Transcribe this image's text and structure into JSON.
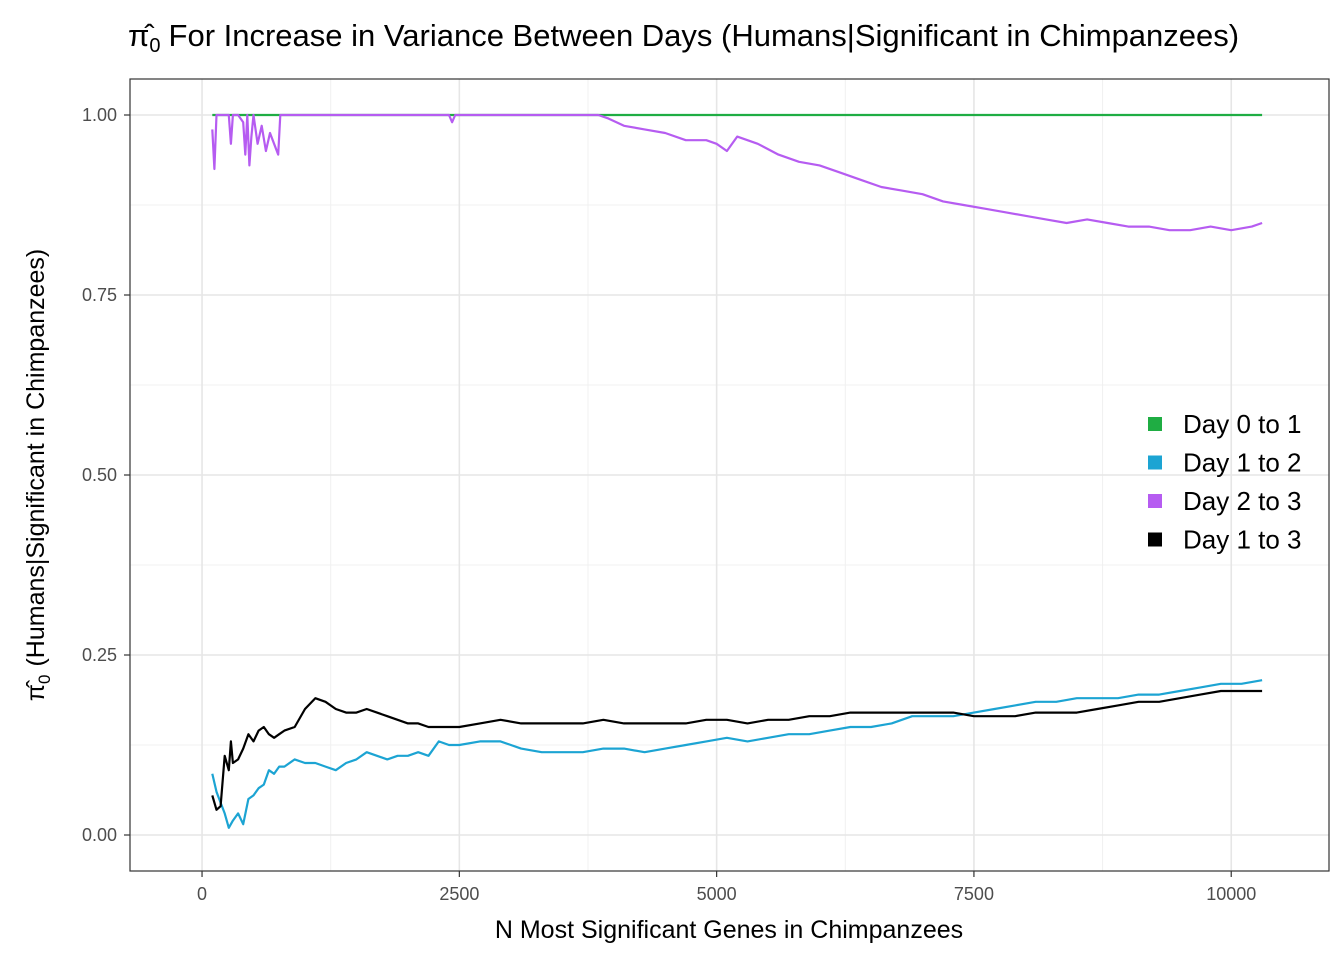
{
  "chart_data": {
    "type": "line",
    "title_prefix": "π̂",
    "title_subscript": "0",
    "title_text": "For Increase in Variance Between Days (Humans|Significant in Chimpanzees)",
    "xlabel": "N Most Significant Genes in Chimpanzees",
    "ylabel_prefix": "π̂",
    "ylabel_subscript": "0",
    "ylabel_text": "(Humans|Significant in Chimpanzees)",
    "xlim": [
      -700,
      10950
    ],
    "ylim": [
      -0.05,
      1.05
    ],
    "x_ticks": [
      0,
      2500,
      5000,
      7500,
      10000
    ],
    "x_tick_labels": [
      "0",
      "2500",
      "5000",
      "7500",
      "10000"
    ],
    "y_ticks": [
      0,
      0.25,
      0.5,
      0.75,
      1.0
    ],
    "y_tick_labels": [
      "0.00",
      "0.25",
      "0.50",
      "0.75",
      "1.00"
    ],
    "grid": true,
    "legend_position": "right",
    "series": [
      {
        "name": "Day 0 to 1",
        "color": "#1fad43",
        "points": [
          [
            100,
            1.0
          ],
          [
            10300,
            1.0
          ]
        ]
      },
      {
        "name": "Day 1 to 2",
        "color": "#1ca4d3",
        "points": [
          [
            100,
            0.085
          ],
          [
            140,
            0.06
          ],
          [
            180,
            0.045
          ],
          [
            220,
            0.03
          ],
          [
            260,
            0.01
          ],
          [
            300,
            0.02
          ],
          [
            350,
            0.03
          ],
          [
            400,
            0.015
          ],
          [
            450,
            0.05
          ],
          [
            500,
            0.055
          ],
          [
            550,
            0.065
          ],
          [
            600,
            0.07
          ],
          [
            650,
            0.09
          ],
          [
            700,
            0.085
          ],
          [
            750,
            0.095
          ],
          [
            800,
            0.095
          ],
          [
            900,
            0.105
          ],
          [
            1000,
            0.1
          ],
          [
            1100,
            0.1
          ],
          [
            1200,
            0.095
          ],
          [
            1300,
            0.09
          ],
          [
            1400,
            0.1
          ],
          [
            1500,
            0.105
          ],
          [
            1600,
            0.115
          ],
          [
            1700,
            0.11
          ],
          [
            1800,
            0.105
          ],
          [
            1900,
            0.11
          ],
          [
            2000,
            0.11
          ],
          [
            2100,
            0.115
          ],
          [
            2200,
            0.11
          ],
          [
            2300,
            0.13
          ],
          [
            2400,
            0.125
          ],
          [
            2500,
            0.125
          ],
          [
            2700,
            0.13
          ],
          [
            2900,
            0.13
          ],
          [
            3100,
            0.12
          ],
          [
            3300,
            0.115
          ],
          [
            3500,
            0.115
          ],
          [
            3700,
            0.115
          ],
          [
            3900,
            0.12
          ],
          [
            4100,
            0.12
          ],
          [
            4300,
            0.115
          ],
          [
            4500,
            0.12
          ],
          [
            4700,
            0.125
          ],
          [
            4900,
            0.13
          ],
          [
            5100,
            0.135
          ],
          [
            5300,
            0.13
          ],
          [
            5500,
            0.135
          ],
          [
            5700,
            0.14
          ],
          [
            5900,
            0.14
          ],
          [
            6100,
            0.145
          ],
          [
            6300,
            0.15
          ],
          [
            6500,
            0.15
          ],
          [
            6700,
            0.155
          ],
          [
            6900,
            0.165
          ],
          [
            7100,
            0.165
          ],
          [
            7300,
            0.165
          ],
          [
            7500,
            0.17
          ],
          [
            7700,
            0.175
          ],
          [
            7900,
            0.18
          ],
          [
            8100,
            0.185
          ],
          [
            8300,
            0.185
          ],
          [
            8500,
            0.19
          ],
          [
            8700,
            0.19
          ],
          [
            8900,
            0.19
          ],
          [
            9100,
            0.195
          ],
          [
            9300,
            0.195
          ],
          [
            9500,
            0.2
          ],
          [
            9700,
            0.205
          ],
          [
            9900,
            0.21
          ],
          [
            10100,
            0.21
          ],
          [
            10300,
            0.215
          ]
        ]
      },
      {
        "name": "Day 2 to 3",
        "color": "#b65cf1",
        "points": [
          [
            100,
            0.98
          ],
          [
            120,
            0.925
          ],
          [
            140,
            1.0
          ],
          [
            200,
            1.0
          ],
          [
            260,
            1.0
          ],
          [
            280,
            0.96
          ],
          [
            300,
            1.0
          ],
          [
            350,
            1.0
          ],
          [
            400,
            0.99
          ],
          [
            420,
            0.945
          ],
          [
            440,
            1.0
          ],
          [
            460,
            0.93
          ],
          [
            480,
            0.97
          ],
          [
            500,
            1.0
          ],
          [
            540,
            0.96
          ],
          [
            580,
            0.985
          ],
          [
            620,
            0.95
          ],
          [
            660,
            0.975
          ],
          [
            700,
            0.96
          ],
          [
            740,
            0.945
          ],
          [
            760,
            1.0
          ],
          [
            900,
            1.0
          ],
          [
            1200,
            1.0
          ],
          [
            1600,
            1.0
          ],
          [
            2000,
            1.0
          ],
          [
            2400,
            1.0
          ],
          [
            2430,
            0.99
          ],
          [
            2460,
            1.0
          ],
          [
            2800,
            1.0
          ],
          [
            3200,
            1.0
          ],
          [
            3600,
            1.0
          ],
          [
            3850,
            1.0
          ],
          [
            3950,
            0.995
          ],
          [
            4100,
            0.985
          ],
          [
            4300,
            0.98
          ],
          [
            4500,
            0.975
          ],
          [
            4700,
            0.965
          ],
          [
            4900,
            0.965
          ],
          [
            5000,
            0.96
          ],
          [
            5100,
            0.95
          ],
          [
            5200,
            0.97
          ],
          [
            5400,
            0.96
          ],
          [
            5600,
            0.945
          ],
          [
            5800,
            0.935
          ],
          [
            6000,
            0.93
          ],
          [
            6200,
            0.92
          ],
          [
            6400,
            0.91
          ],
          [
            6600,
            0.9
          ],
          [
            6800,
            0.895
          ],
          [
            7000,
            0.89
          ],
          [
            7200,
            0.88
          ],
          [
            7400,
            0.875
          ],
          [
            7600,
            0.87
          ],
          [
            7800,
            0.865
          ],
          [
            8000,
            0.86
          ],
          [
            8200,
            0.855
          ],
          [
            8400,
            0.85
          ],
          [
            8600,
            0.855
          ],
          [
            8800,
            0.85
          ],
          [
            9000,
            0.845
          ],
          [
            9200,
            0.845
          ],
          [
            9400,
            0.84
          ],
          [
            9600,
            0.84
          ],
          [
            9800,
            0.845
          ],
          [
            10000,
            0.84
          ],
          [
            10200,
            0.845
          ],
          [
            10300,
            0.85
          ]
        ]
      },
      {
        "name": "Day 1 to 3",
        "color": "#000000",
        "points": [
          [
            100,
            0.055
          ],
          [
            140,
            0.035
          ],
          [
            180,
            0.04
          ],
          [
            220,
            0.11
          ],
          [
            260,
            0.09
          ],
          [
            280,
            0.13
          ],
          [
            300,
            0.1
          ],
          [
            350,
            0.105
          ],
          [
            400,
            0.12
          ],
          [
            450,
            0.14
          ],
          [
            500,
            0.13
          ],
          [
            550,
            0.145
          ],
          [
            600,
            0.15
          ],
          [
            650,
            0.14
          ],
          [
            700,
            0.135
          ],
          [
            750,
            0.14
          ],
          [
            800,
            0.145
          ],
          [
            900,
            0.15
          ],
          [
            1000,
            0.175
          ],
          [
            1100,
            0.19
          ],
          [
            1200,
            0.185
          ],
          [
            1300,
            0.175
          ],
          [
            1400,
            0.17
          ],
          [
            1500,
            0.17
          ],
          [
            1600,
            0.175
          ],
          [
            1700,
            0.17
          ],
          [
            1800,
            0.165
          ],
          [
            1900,
            0.16
          ],
          [
            2000,
            0.155
          ],
          [
            2100,
            0.155
          ],
          [
            2200,
            0.15
          ],
          [
            2300,
            0.15
          ],
          [
            2400,
            0.15
          ],
          [
            2500,
            0.15
          ],
          [
            2700,
            0.155
          ],
          [
            2900,
            0.16
          ],
          [
            3100,
            0.155
          ],
          [
            3300,
            0.155
          ],
          [
            3500,
            0.155
          ],
          [
            3700,
            0.155
          ],
          [
            3900,
            0.16
          ],
          [
            4100,
            0.155
          ],
          [
            4300,
            0.155
          ],
          [
            4500,
            0.155
          ],
          [
            4700,
            0.155
          ],
          [
            4900,
            0.16
          ],
          [
            5100,
            0.16
          ],
          [
            5300,
            0.155
          ],
          [
            5500,
            0.16
          ],
          [
            5700,
            0.16
          ],
          [
            5900,
            0.165
          ],
          [
            6100,
            0.165
          ],
          [
            6300,
            0.17
          ],
          [
            6500,
            0.17
          ],
          [
            6700,
            0.17
          ],
          [
            6900,
            0.17
          ],
          [
            7100,
            0.17
          ],
          [
            7300,
            0.17
          ],
          [
            7500,
            0.165
          ],
          [
            7700,
            0.165
          ],
          [
            7900,
            0.165
          ],
          [
            8100,
            0.17
          ],
          [
            8300,
            0.17
          ],
          [
            8500,
            0.17
          ],
          [
            8700,
            0.175
          ],
          [
            8900,
            0.18
          ],
          [
            9100,
            0.185
          ],
          [
            9300,
            0.185
          ],
          [
            9500,
            0.19
          ],
          [
            9700,
            0.195
          ],
          [
            9900,
            0.2
          ],
          [
            10100,
            0.2
          ],
          [
            10300,
            0.2
          ]
        ]
      }
    ]
  }
}
